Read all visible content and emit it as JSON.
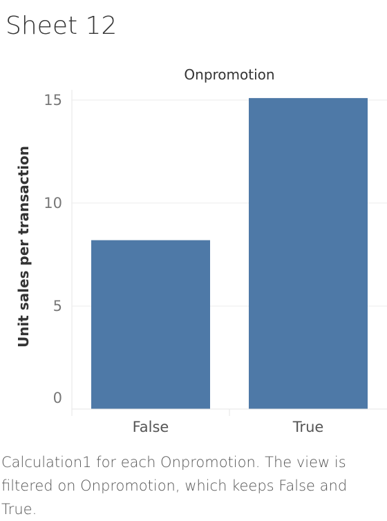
{
  "sheet": {
    "title": "Sheet 12"
  },
  "chart_data": {
    "type": "bar",
    "column_header": "Onpromotion",
    "categories": [
      "False",
      "True"
    ],
    "values": [
      8.2,
      15.1
    ],
    "xlabel": "",
    "ylabel": "Unit sales per transaction",
    "ylim": [
      0,
      15.5
    ],
    "yticks": [
      0,
      5,
      10,
      15
    ],
    "grid": true,
    "bar_color": "#4e79a7",
    "legend": "none"
  },
  "caption": {
    "text": "Calculation1 for each Onpromotion. The view is filtered on Onpromotion, which keeps False and True."
  }
}
